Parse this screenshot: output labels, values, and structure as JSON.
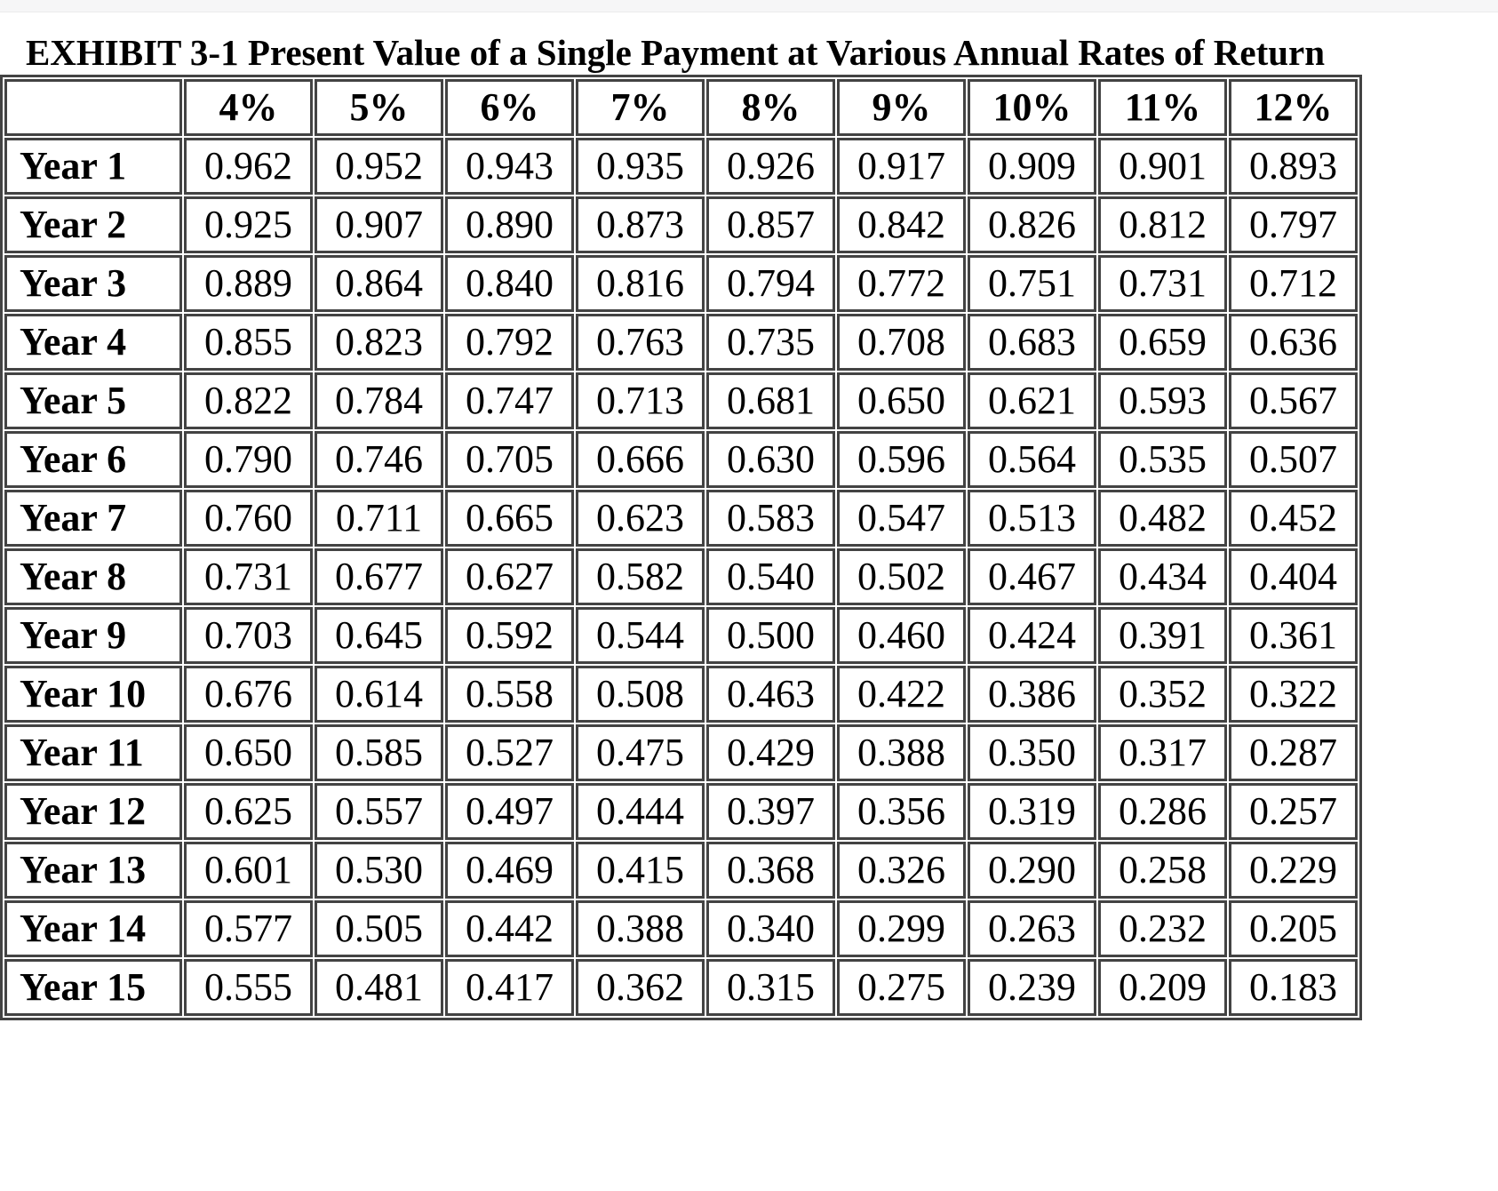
{
  "title": "EXHIBIT 3-1 Present Value of a Single Payment at Various Annual Rates of Return",
  "colors": {
    "table_border": "#434343",
    "text": "#000000",
    "top_strip": "#f6f6f7",
    "page_background": "#ffffff"
  },
  "chart_data": {
    "type": "table",
    "title": "EXHIBIT 3-1 Present Value of a Single Payment at Various Annual Rates of Return",
    "corner_header": "",
    "columns": [
      "4%",
      "5%",
      "6%",
      "7%",
      "8%",
      "9%",
      "10%",
      "11%",
      "12%"
    ],
    "rows": [
      {
        "label": "Year 1",
        "values": [
          "0.962",
          "0.952",
          "0.943",
          "0.935",
          "0.926",
          "0.917",
          "0.909",
          "0.901",
          "0.893"
        ]
      },
      {
        "label": "Year 2",
        "values": [
          "0.925",
          "0.907",
          "0.890",
          "0.873",
          "0.857",
          "0.842",
          "0.826",
          "0.812",
          "0.797"
        ]
      },
      {
        "label": "Year 3",
        "values": [
          "0.889",
          "0.864",
          "0.840",
          "0.816",
          "0.794",
          "0.772",
          "0.751",
          "0.731",
          "0.712"
        ]
      },
      {
        "label": "Year 4",
        "values": [
          "0.855",
          "0.823",
          "0.792",
          "0.763",
          "0.735",
          "0.708",
          "0.683",
          "0.659",
          "0.636"
        ]
      },
      {
        "label": "Year 5",
        "values": [
          "0.822",
          "0.784",
          "0.747",
          "0.713",
          "0.681",
          "0.650",
          "0.621",
          "0.593",
          "0.567"
        ]
      },
      {
        "label": "Year 6",
        "values": [
          "0.790",
          "0.746",
          "0.705",
          "0.666",
          "0.630",
          "0.596",
          "0.564",
          "0.535",
          "0.507"
        ]
      },
      {
        "label": "Year 7",
        "values": [
          "0.760",
          "0.711",
          "0.665",
          "0.623",
          "0.583",
          "0.547",
          "0.513",
          "0.482",
          "0.452"
        ]
      },
      {
        "label": "Year 8",
        "values": [
          "0.731",
          "0.677",
          "0.627",
          "0.582",
          "0.540",
          "0.502",
          "0.467",
          "0.434",
          "0.404"
        ]
      },
      {
        "label": "Year 9",
        "values": [
          "0.703",
          "0.645",
          "0.592",
          "0.544",
          "0.500",
          "0.460",
          "0.424",
          "0.391",
          "0.361"
        ]
      },
      {
        "label": "Year 10",
        "values": [
          "0.676",
          "0.614",
          "0.558",
          "0.508",
          "0.463",
          "0.422",
          "0.386",
          "0.352",
          "0.322"
        ]
      },
      {
        "label": "Year 11",
        "values": [
          "0.650",
          "0.585",
          "0.527",
          "0.475",
          "0.429",
          "0.388",
          "0.350",
          "0.317",
          "0.287"
        ]
      },
      {
        "label": "Year 12",
        "values": [
          "0.625",
          "0.557",
          "0.497",
          "0.444",
          "0.397",
          "0.356",
          "0.319",
          "0.286",
          "0.257"
        ]
      },
      {
        "label": "Year 13",
        "values": [
          "0.601",
          "0.530",
          "0.469",
          "0.415",
          "0.368",
          "0.326",
          "0.290",
          "0.258",
          "0.229"
        ]
      },
      {
        "label": "Year 14",
        "values": [
          "0.577",
          "0.505",
          "0.442",
          "0.388",
          "0.340",
          "0.299",
          "0.263",
          "0.232",
          "0.205"
        ]
      },
      {
        "label": "Year 15",
        "values": [
          "0.555",
          "0.481",
          "0.417",
          "0.362",
          "0.315",
          "0.275",
          "0.239",
          "0.209",
          "0.183"
        ]
      }
    ]
  }
}
